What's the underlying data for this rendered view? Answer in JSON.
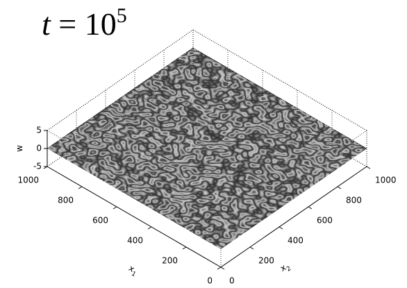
{
  "chart_data": {
    "type": "surface",
    "title": [
      "t",
      "= 10",
      "5"
    ],
    "x1_label": [
      "x",
      "1"
    ],
    "x2_label": [
      "x",
      "2"
    ],
    "w_label": "w",
    "x1lim": [
      0,
      1000
    ],
    "x1ticks": [
      0,
      200,
      400,
      600,
      800,
      1000
    ],
    "x2lim": [
      0,
      1000
    ],
    "x2ticks": [
      0,
      200,
      400,
      600,
      800,
      1000
    ],
    "wlim": [
      -5,
      5
    ],
    "wticks": [
      -5,
      0,
      5
    ],
    "grid": true,
    "colormap": "gray"
  }
}
